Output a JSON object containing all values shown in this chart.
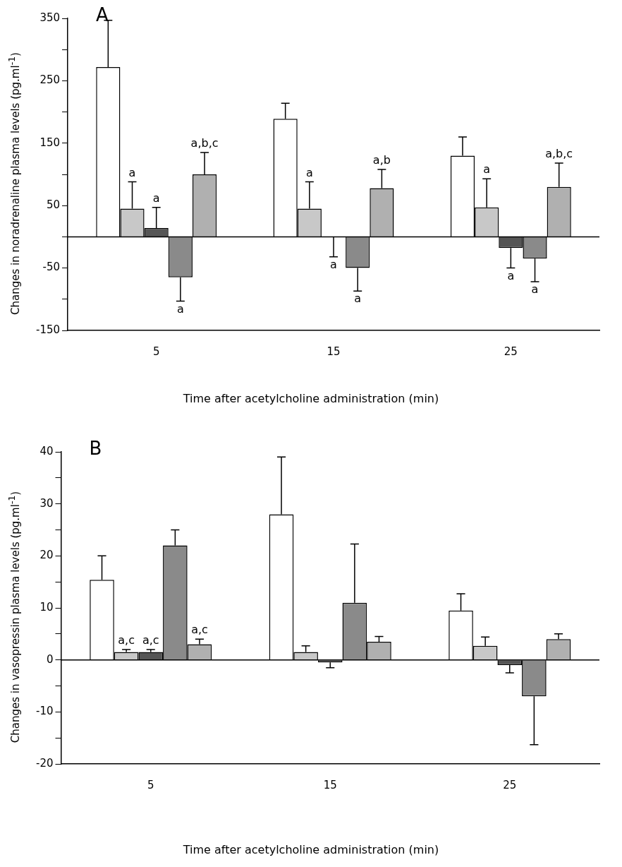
{
  "chart_data": [
    {
      "type": "bar",
      "title": "A",
      "xlabel": "Time after acetylcholine administration (min)",
      "ylabel": "Changes in noradrenaline plasma levels (pg.ml$^{-1}$)",
      "categories": [
        "5",
        "15",
        "25"
      ],
      "series": [
        {
          "color": "#ffffff",
          "values": [
            272,
            189,
            130
          ],
          "errors": [
            [
              272,
              347
            ],
            [
              189,
              214
            ],
            [
              130,
              160
            ]
          ]
        },
        {
          "color": "#c8c8c8",
          "values": [
            45,
            45,
            47
          ],
          "errors": [
            [
              45,
              88
            ],
            [
              45,
              88
            ],
            [
              47,
              93
            ]
          ],
          "value_labels": [
            "a",
            "a",
            "a"
          ]
        },
        {
          "color": "#555555",
          "values": [
            14,
            0,
            -18
          ],
          "errors": [
            [
              14,
              47
            ],
            [
              -32,
              0
            ],
            [
              -50,
              -18
            ]
          ],
          "value_labels": [
            "a",
            "a",
            "a"
          ]
        },
        {
          "color": "#8a8a8a",
          "values": [
            -65,
            -50,
            -35
          ],
          "errors": [
            [
              -103,
              -65
            ],
            [
              -87,
              -50
            ],
            [
              -72,
              -35
            ]
          ],
          "value_labels": [
            "a",
            "a",
            "a"
          ]
        },
        {
          "color": "#b0b0b0",
          "values": [
            100,
            78,
            80
          ],
          "errors": [
            [
              100,
              135
            ],
            [
              78,
              108
            ],
            [
              80,
              118
            ]
          ],
          "value_labels": [
            "a,b,c",
            "a,b",
            "a,b,c"
          ]
        }
      ],
      "ylim": [
        -150,
        350
      ],
      "yticks": [
        -150,
        {
          "value": -100,
          "label": null
        },
        -50,
        {
          "value": 0,
          "label": null
        },
        50,
        {
          "value": 100,
          "label": null
        },
        150,
        {
          "value": 200,
          "label": null
        },
        250,
        {
          "value": 300,
          "label": null
        },
        350
      ],
      "ref_lines": [
        {
          "axis": "y",
          "value": 0,
          "color": "#000000"
        }
      ],
      "grid": false,
      "legend": false
    },
    {
      "type": "bar",
      "title": "B",
      "xlabel": "Time after acetylcholine administration (min)",
      "ylabel": "Changes in vasopressin plasma levels (pg.ml$^{-1}$)",
      "categories": [
        "5",
        "15",
        "25"
      ],
      "series": [
        {
          "color": "#ffffff",
          "values": [
            15.4,
            28,
            9.5
          ],
          "errors": [
            [
              15.4,
              20
            ],
            [
              28,
              39
            ],
            [
              9.5,
              12.7
            ]
          ]
        },
        {
          "color": "#c8c8c8",
          "values": [
            1.5,
            1.5,
            2.7
          ],
          "errors": [
            [
              1.5,
              2
            ],
            [
              1.5,
              2.7
            ],
            [
              2.7,
              4.4
            ]
          ],
          "value_labels": [
            "a,c",
            null,
            null
          ]
        },
        {
          "color": "#555555",
          "values": [
            1.5,
            -0.5,
            -1
          ],
          "errors": [
            [
              1.5,
              2
            ],
            [
              -1.5,
              -0.5
            ],
            [
              -2.5,
              -1
            ]
          ],
          "value_labels": [
            "a,c",
            null,
            null
          ]
        },
        {
          "color": "#8a8a8a",
          "values": [
            22,
            11,
            -7
          ],
          "errors": [
            [
              22,
              25
            ],
            [
              11,
              22.3
            ],
            [
              -16.3,
              -7
            ]
          ]
        },
        {
          "color": "#b0b0b0",
          "values": [
            3,
            3.5,
            4
          ],
          "errors": [
            [
              3,
              4
            ],
            [
              3.5,
              4.5
            ],
            [
              4,
              5
            ]
          ],
          "value_labels": [
            "a,c",
            null,
            null
          ]
        }
      ],
      "ylim": [
        -20,
        40
      ],
      "yticks": [
        -20,
        {
          "value": -15,
          "label": null
        },
        -10,
        {
          "value": -5,
          "label": null
        },
        0,
        {
          "value": 5,
          "label": null
        },
        10,
        {
          "value": 15,
          "label": null
        },
        20,
        {
          "value": 25,
          "label": null
        },
        30,
        {
          "value": 35,
          "label": null
        },
        40
      ],
      "ref_lines": [
        {
          "axis": "y",
          "value": 0,
          "color": "#000000"
        }
      ],
      "grid": false,
      "legend": false
    }
  ]
}
